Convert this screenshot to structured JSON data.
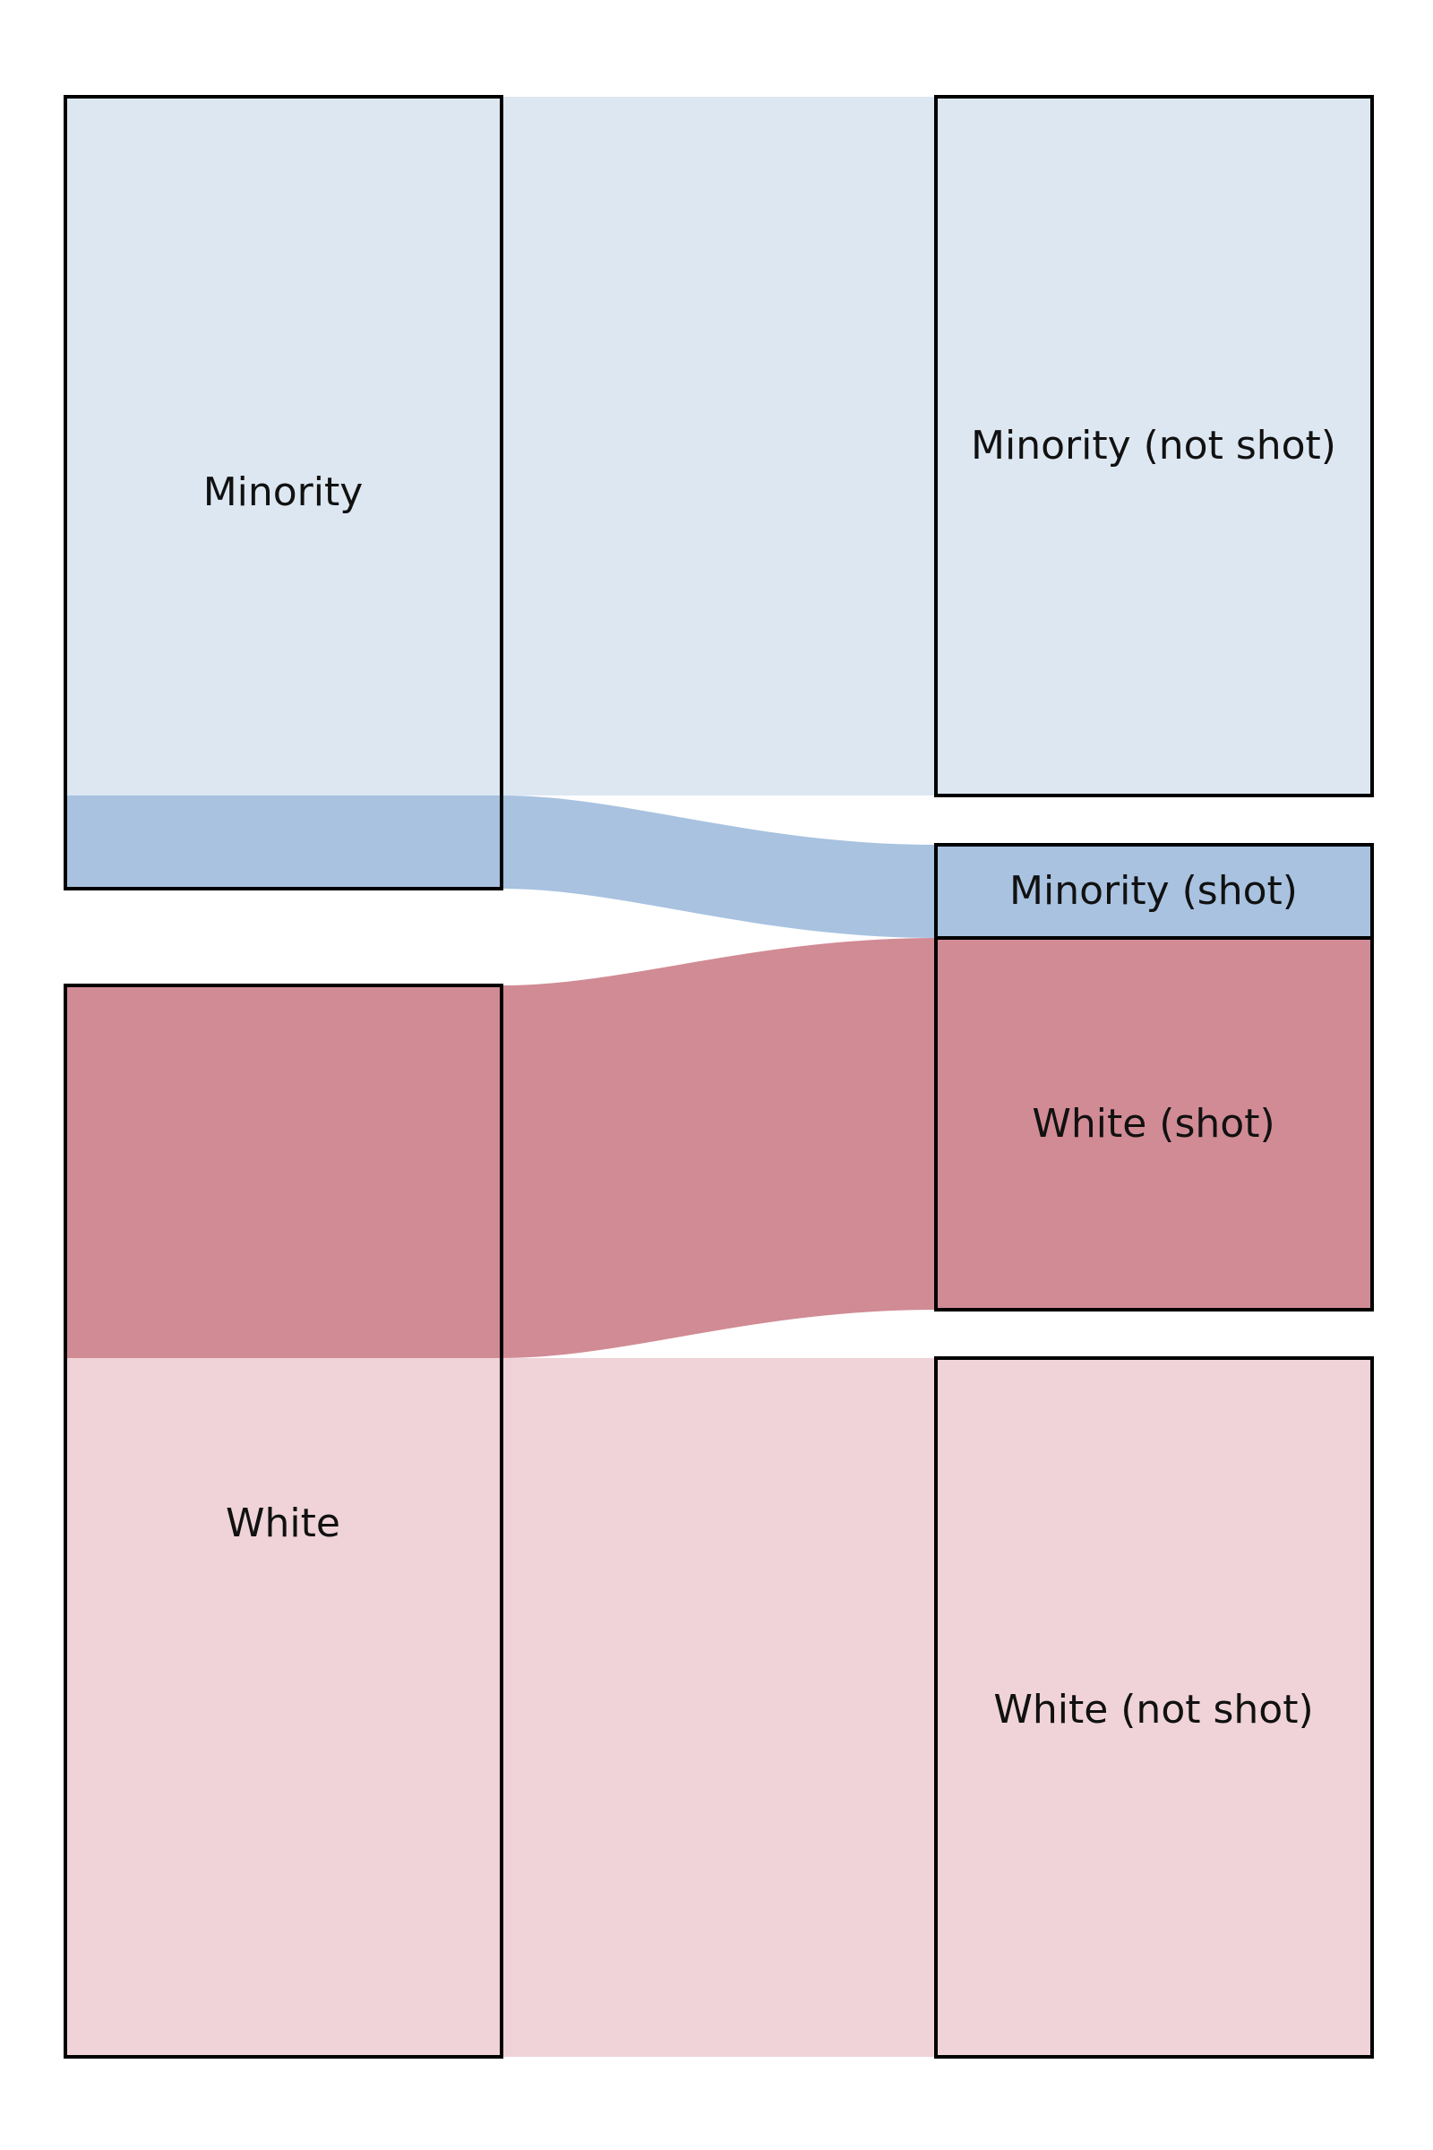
{
  "colors": {
    "minority_light": "#dde7f2",
    "minority_dark": "#a8c2e0",
    "white_light": "#efd3d8",
    "white_dark": "#d18b95",
    "border": "#000000"
  },
  "nodes": {
    "minority": {
      "label": "Minority",
      "value": 85
    },
    "white": {
      "label": "White",
      "value": 115
    },
    "minority_not_shot": {
      "label": "Minority (not shot)",
      "value": 75
    },
    "minority_shot": {
      "label": "Minority (shot)",
      "value": 10
    },
    "white_shot": {
      "label": "White (shot)",
      "value": 40
    },
    "white_not_shot": {
      "label": "White (not shot)",
      "value": 75
    }
  },
  "links": [
    {
      "source": "Minority",
      "target": "Minority (not shot)",
      "value": 75
    },
    {
      "source": "Minority",
      "target": "Minority (shot)",
      "value": 10
    },
    {
      "source": "White",
      "target": "White (shot)",
      "value": 40
    },
    {
      "source": "White",
      "target": "White (not shot)",
      "value": 75
    }
  ]
}
